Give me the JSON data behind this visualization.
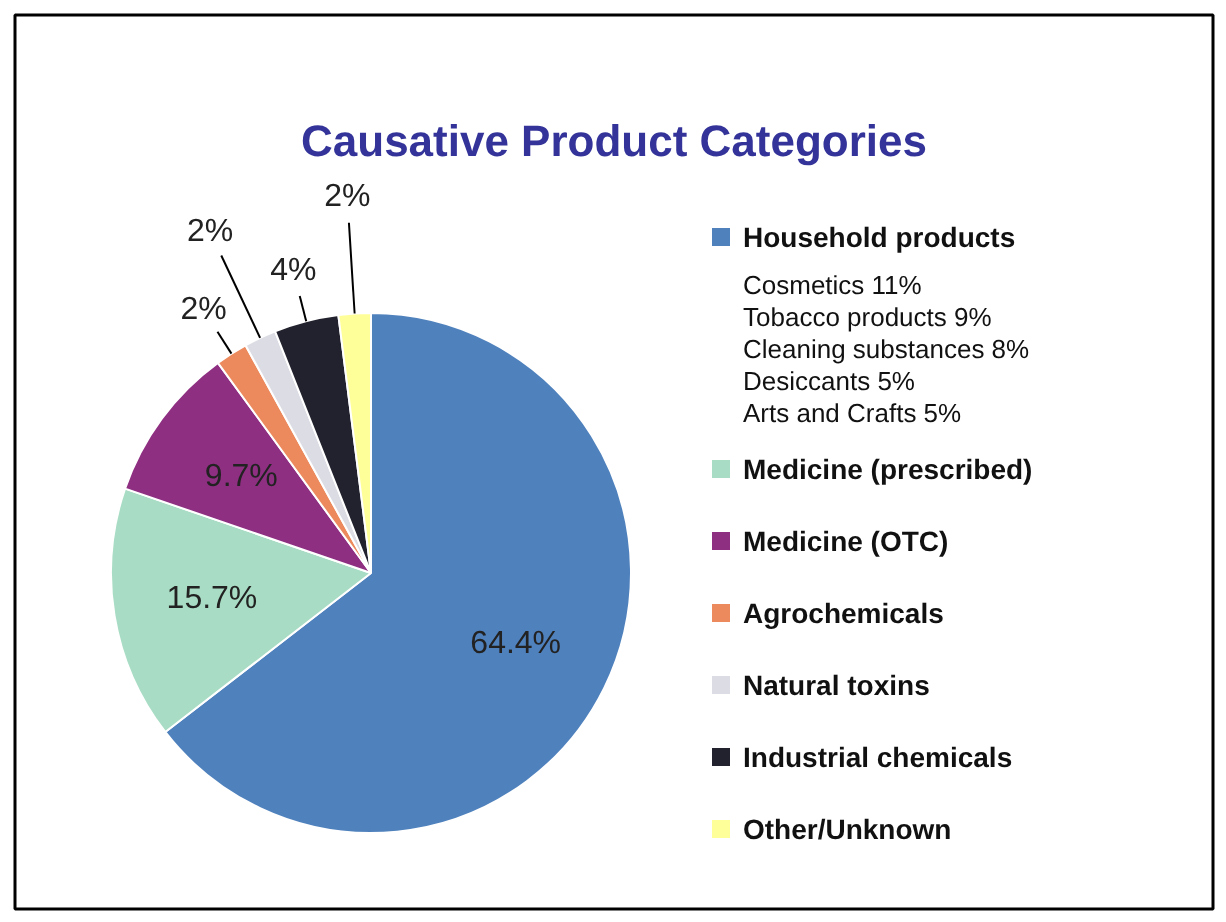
{
  "chart_data": {
    "type": "pie",
    "title": "Causative Product Categories",
    "categories": [
      "Household products",
      "Medicine (prescribed)",
      "Medicine (OTC)",
      "Agrochemicals",
      "Natural toxins",
      "Industrial chemicals",
      "Other/Unknown"
    ],
    "values": [
      64.4,
      15.7,
      9.7,
      2,
      2,
      4,
      2
    ],
    "colors": [
      "#4f81bd",
      "#a8dcc4",
      "#8e2f82",
      "#ec8a5e",
      "#dcdce4",
      "#22222e",
      "#ffff99"
    ],
    "value_labels": [
      "64.4%",
      "15.7%",
      "9.7%",
      "2%",
      "2%",
      "4%",
      "2%"
    ],
    "legend": "right",
    "annotations": [
      "Cosmetics 11%",
      "Tobacco products 9%",
      "Cleaning substances 8%",
      "Desiccants 5%",
      "Arts and Crafts 5%"
    ]
  }
}
